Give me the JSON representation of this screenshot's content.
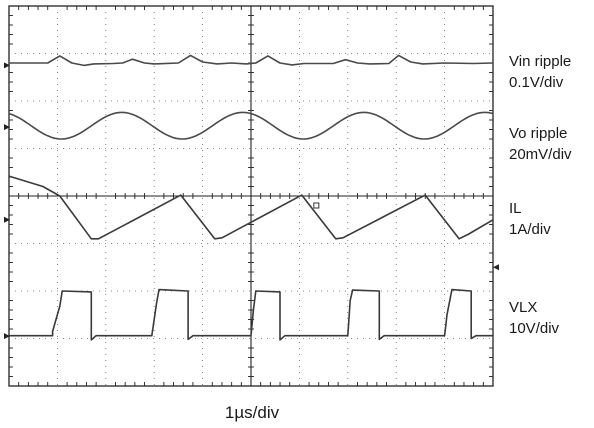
{
  "chart_data": {
    "type": "line",
    "title": "",
    "timebase": "1µs/div",
    "divisions": {
      "x": 10,
      "y": 8
    },
    "grid": true,
    "xlim": [
      0,
      10
    ],
    "period_div": 2.5,
    "series": [
      {
        "name": "Vin ripple",
        "scale": "0.1V/div",
        "description_level_div": 1.2,
        "color": "#4a4a4a",
        "points": [
          [
            0,
            1.2
          ],
          [
            0.8,
            1.2
          ],
          [
            1.05,
            1.05
          ],
          [
            1.3,
            1.2
          ],
          [
            1.55,
            1.25
          ],
          [
            1.75,
            1.22
          ],
          [
            2.15,
            1.21
          ],
          [
            2.35,
            1.2
          ],
          [
            2.55,
            1.12
          ],
          [
            2.8,
            1.2
          ],
          [
            3.0,
            1.22
          ],
          [
            3.5,
            1.2
          ],
          [
            3.75,
            1.04
          ],
          [
            4.0,
            1.18
          ],
          [
            4.3,
            1.22
          ],
          [
            4.6,
            1.2
          ],
          [
            4.9,
            1.22
          ],
          [
            5.1,
            1.2
          ],
          [
            5.35,
            1.05
          ],
          [
            5.6,
            1.2
          ],
          [
            5.85,
            1.24
          ],
          [
            6.1,
            1.21
          ],
          [
            6.7,
            1.21
          ],
          [
            6.95,
            1.13
          ],
          [
            7.2,
            1.2
          ],
          [
            7.45,
            1.22
          ],
          [
            7.85,
            1.21
          ],
          [
            8.05,
            1.04
          ],
          [
            8.3,
            1.18
          ],
          [
            8.55,
            1.22
          ],
          [
            9.0,
            1.2
          ],
          [
            9.6,
            1.21
          ],
          [
            10,
            1.2
          ]
        ]
      },
      {
        "name": "Vo ripple",
        "scale": "20mV/div",
        "color": "#4a4a4a",
        "waveform": "sine",
        "center_div": 2.52,
        "amplitude_div": 0.28,
        "first_trough_div": 1.08
      },
      {
        "name": "IL",
        "scale": "1A/div",
        "color": "#3a3a3a",
        "points": [
          [
            0,
            3.58
          ],
          [
            0.7,
            3.8
          ],
          [
            1.05,
            4.0
          ],
          [
            1.7,
            4.9
          ],
          [
            1.85,
            4.9
          ],
          [
            3.55,
            3.98
          ],
          [
            4.25,
            4.9
          ],
          [
            4.4,
            4.88
          ],
          [
            6.05,
            3.98
          ],
          [
            6.75,
            4.9
          ],
          [
            6.9,
            4.88
          ],
          [
            8.6,
            3.98
          ],
          [
            9.3,
            4.9
          ],
          [
            9.5,
            4.8
          ],
          [
            10,
            4.5
          ]
        ]
      },
      {
        "name": "VLX",
        "scale": "10V/div",
        "color": "#3a3a3a",
        "points": [
          [
            0,
            6.94
          ],
          [
            0.9,
            6.94
          ],
          [
            0.9,
            6.85
          ],
          [
            1.05,
            6.32
          ],
          [
            1.1,
            6.0
          ],
          [
            1.7,
            6.02
          ],
          [
            1.7,
            7.03
          ],
          [
            1.8,
            6.94
          ],
          [
            2.95,
            6.94
          ],
          [
            3.05,
            6.25
          ],
          [
            3.1,
            5.97
          ],
          [
            3.7,
            6.0
          ],
          [
            3.7,
            7.02
          ],
          [
            3.8,
            6.94
          ],
          [
            5.0,
            6.94
          ],
          [
            5.05,
            6.4
          ],
          [
            5.1,
            6.0
          ],
          [
            5.6,
            6.02
          ],
          [
            5.6,
            7.03
          ],
          [
            5.7,
            6.94
          ],
          [
            7.0,
            6.94
          ],
          [
            7.05,
            6.2
          ],
          [
            7.1,
            5.98
          ],
          [
            7.65,
            6.0
          ],
          [
            7.65,
            7.02
          ],
          [
            7.75,
            6.94
          ],
          [
            9.0,
            6.94
          ],
          [
            9.05,
            6.5
          ],
          [
            9.15,
            5.97
          ],
          [
            9.55,
            6.0
          ],
          [
            9.55,
            7.0
          ],
          [
            9.65,
            6.94
          ],
          [
            10,
            6.94
          ]
        ]
      }
    ],
    "labels": [
      {
        "name": "Vin ripple",
        "scale": "0.1V/div"
      },
      {
        "name": "Vo ripple",
        "scale": "20mV/div"
      },
      {
        "name": "IL",
        "scale": "1A/div"
      },
      {
        "name": "VLX",
        "scale": "10V/div"
      }
    ]
  }
}
